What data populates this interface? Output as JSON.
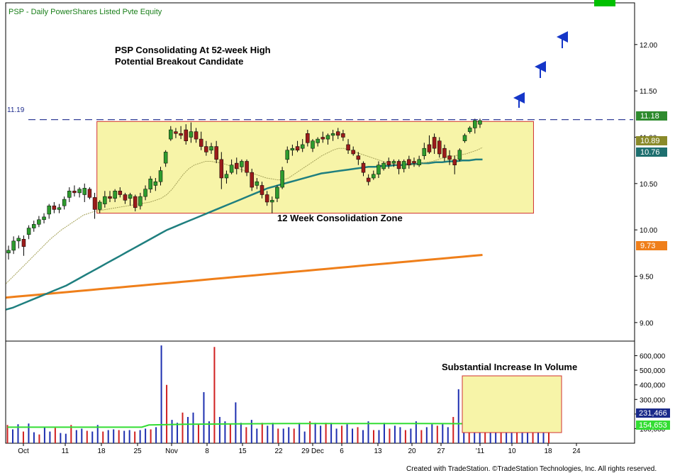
{
  "header": {
    "symbol": "PSP",
    "interval": "Daily",
    "description": "PowerShares Listed Pvte Equity",
    "status_color": "#00c000"
  },
  "annotations": {
    "title_line1": "PSP Consolidating At 52-week High",
    "title_line2": "Potential Breakout Candidate",
    "zone_label": "12 Week Consolidation Zone",
    "volume_note": "Substantial Increase In Volume",
    "resistance_label": "11.19"
  },
  "footer": {
    "credit": "Created with TradeStation. ©TradeStation Technologies, Inc. All rights reserved."
  },
  "colors": {
    "up": "#2e9b2e",
    "down": "#9b1b1b",
    "ma10": "#a5a25a",
    "ma50": "#1f7f7f",
    "ma200": "#ef7f1a",
    "vol_up": "#1e2fb0",
    "vol_down": "#d02020",
    "vol_avg": "#33dd33",
    "zone_fill": "#f7f4a8",
    "zone_border": "#d03030",
    "resistance": "#1c2a8c",
    "arrow": "#1536c8"
  },
  "chart_data": [
    {
      "type": "candlestick",
      "name": "price",
      "x_labels": [
        "Oct",
        "11",
        "18",
        "25",
        "Nov",
        "8",
        "15",
        "22",
        "29 Dec",
        "6",
        "13",
        "20",
        "27",
        "'11",
        "10",
        "18",
        "24"
      ],
      "y_ticks": [
        9.0,
        9.5,
        10.0,
        10.5,
        11.0,
        11.5,
        12.0
      ],
      "ylim": [
        8.8,
        12.45
      ],
      "last_price_labels": [
        {
          "value": "11.18",
          "series": "price"
        },
        {
          "value": "10.89",
          "series": "10-day MA"
        },
        {
          "value": "10.76",
          "series": "50-day MA"
        },
        {
          "value": "9.73",
          "series": "200-day MA"
        }
      ],
      "resistance": 11.19,
      "consolidation_zone": {
        "x_start": 18,
        "x_end": 103,
        "y_low": 10.18,
        "y_high": 11.17
      },
      "candles": [
        {
          "o": 9.75,
          "h": 9.83,
          "l": 9.68,
          "c": 9.78
        },
        {
          "o": 9.78,
          "h": 9.93,
          "l": 9.74,
          "c": 9.88
        },
        {
          "o": 9.88,
          "h": 9.94,
          "l": 9.8,
          "c": 9.91
        },
        {
          "o": 9.9,
          "h": 9.94,
          "l": 9.72,
          "c": 9.82
        },
        {
          "o": 9.95,
          "h": 10.05,
          "l": 9.9,
          "c": 10.02
        },
        {
          "o": 10.02,
          "h": 10.1,
          "l": 9.98,
          "c": 10.06
        },
        {
          "o": 10.06,
          "h": 10.15,
          "l": 10.03,
          "c": 10.11
        },
        {
          "o": 10.11,
          "h": 10.18,
          "l": 10.07,
          "c": 10.14
        },
        {
          "o": 10.17,
          "h": 10.28,
          "l": 10.12,
          "c": 10.26
        },
        {
          "o": 10.26,
          "h": 10.3,
          "l": 10.18,
          "c": 10.22
        },
        {
          "o": 10.22,
          "h": 10.28,
          "l": 10.18,
          "c": 10.24
        },
        {
          "o": 10.26,
          "h": 10.36,
          "l": 10.22,
          "c": 10.33
        },
        {
          "o": 10.35,
          "h": 10.46,
          "l": 10.3,
          "c": 10.42
        },
        {
          "o": 10.42,
          "h": 10.48,
          "l": 10.36,
          "c": 10.4
        },
        {
          "o": 10.4,
          "h": 10.46,
          "l": 10.35,
          "c": 10.44
        },
        {
          "o": 10.38,
          "h": 10.5,
          "l": 10.3,
          "c": 10.45
        },
        {
          "o": 10.44,
          "h": 10.46,
          "l": 10.33,
          "c": 10.35
        },
        {
          "o": 10.35,
          "h": 10.4,
          "l": 10.12,
          "c": 10.22
        },
        {
          "o": 10.22,
          "h": 10.32,
          "l": 10.18,
          "c": 10.3
        },
        {
          "o": 10.28,
          "h": 10.42,
          "l": 10.24,
          "c": 10.36
        },
        {
          "o": 10.36,
          "h": 10.42,
          "l": 10.3,
          "c": 10.34
        },
        {
          "o": 10.34,
          "h": 10.44,
          "l": 10.3,
          "c": 10.42
        },
        {
          "o": 10.42,
          "h": 10.46,
          "l": 10.35,
          "c": 10.38
        },
        {
          "o": 10.38,
          "h": 10.4,
          "l": 10.28,
          "c": 10.32
        },
        {
          "o": 10.34,
          "h": 10.4,
          "l": 10.26,
          "c": 10.38
        },
        {
          "o": 10.36,
          "h": 10.38,
          "l": 10.2,
          "c": 10.24
        },
        {
          "o": 10.26,
          "h": 10.4,
          "l": 10.22,
          "c": 10.36
        },
        {
          "o": 10.36,
          "h": 10.48,
          "l": 10.32,
          "c": 10.44
        },
        {
          "o": 10.44,
          "h": 10.58,
          "l": 10.4,
          "c": 10.55
        },
        {
          "o": 10.48,
          "h": 10.56,
          "l": 10.42,
          "c": 10.52
        },
        {
          "o": 10.52,
          "h": 10.68,
          "l": 10.48,
          "c": 10.64
        },
        {
          "o": 10.72,
          "h": 10.86,
          "l": 10.68,
          "c": 10.84
        },
        {
          "o": 10.98,
          "h": 11.12,
          "l": 10.96,
          "c": 11.08
        },
        {
          "o": 11.06,
          "h": 11.1,
          "l": 10.99,
          "c": 11.04
        },
        {
          "o": 11.04,
          "h": 11.12,
          "l": 10.98,
          "c": 11.02
        },
        {
          "o": 11.08,
          "h": 11.14,
          "l": 10.92,
          "c": 10.96
        },
        {
          "o": 11.0,
          "h": 11.16,
          "l": 10.94,
          "c": 11.06
        },
        {
          "o": 11.06,
          "h": 11.1,
          "l": 10.94,
          "c": 10.98
        },
        {
          "o": 10.98,
          "h": 11.06,
          "l": 10.86,
          "c": 10.9
        },
        {
          "o": 10.9,
          "h": 10.96,
          "l": 10.8,
          "c": 10.84
        },
        {
          "o": 10.86,
          "h": 10.94,
          "l": 10.82,
          "c": 10.9
        },
        {
          "o": 10.9,
          "h": 10.96,
          "l": 10.72,
          "c": 10.76
        },
        {
          "o": 10.76,
          "h": 10.84,
          "l": 10.44,
          "c": 10.56
        },
        {
          "o": 10.56,
          "h": 10.64,
          "l": 10.5,
          "c": 10.6
        },
        {
          "o": 10.62,
          "h": 10.76,
          "l": 10.6,
          "c": 10.7
        },
        {
          "o": 10.72,
          "h": 10.78,
          "l": 10.6,
          "c": 10.66
        },
        {
          "o": 10.68,
          "h": 10.76,
          "l": 10.62,
          "c": 10.74
        },
        {
          "o": 10.74,
          "h": 10.76,
          "l": 10.58,
          "c": 10.62
        },
        {
          "o": 10.62,
          "h": 10.66,
          "l": 10.42,
          "c": 10.46
        },
        {
          "o": 10.48,
          "h": 10.56,
          "l": 10.44,
          "c": 10.52
        },
        {
          "o": 10.48,
          "h": 10.52,
          "l": 10.34,
          "c": 10.38
        },
        {
          "o": 10.38,
          "h": 10.42,
          "l": 10.26,
          "c": 10.3
        },
        {
          "o": 10.3,
          "h": 10.36,
          "l": 10.18,
          "c": 10.32
        },
        {
          "o": 10.34,
          "h": 10.48,
          "l": 10.3,
          "c": 10.46
        },
        {
          "o": 10.46,
          "h": 10.68,
          "l": 10.44,
          "c": 10.64
        },
        {
          "o": 10.76,
          "h": 10.9,
          "l": 10.72,
          "c": 10.86
        },
        {
          "o": 10.86,
          "h": 10.92,
          "l": 10.8,
          "c": 10.88
        },
        {
          "o": 10.9,
          "h": 10.96,
          "l": 10.84,
          "c": 10.86
        },
        {
          "o": 10.88,
          "h": 10.98,
          "l": 10.84,
          "c": 10.92
        },
        {
          "o": 11.04,
          "h": 11.08,
          "l": 10.9,
          "c": 10.94
        },
        {
          "o": 10.88,
          "h": 10.98,
          "l": 10.84,
          "c": 10.96
        },
        {
          "o": 10.94,
          "h": 11.0,
          "l": 10.9,
          "c": 10.98
        },
        {
          "o": 11.0,
          "h": 11.06,
          "l": 10.94,
          "c": 10.98
        },
        {
          "o": 10.98,
          "h": 11.04,
          "l": 10.92,
          "c": 11.02
        },
        {
          "o": 11.02,
          "h": 11.08,
          "l": 10.96,
          "c": 11.04
        },
        {
          "o": 11.06,
          "h": 11.1,
          "l": 10.98,
          "c": 11.02
        },
        {
          "o": 11.04,
          "h": 11.08,
          "l": 10.96,
          "c": 11.0
        },
        {
          "o": 10.92,
          "h": 10.98,
          "l": 10.82,
          "c": 10.86
        },
        {
          "o": 10.86,
          "h": 10.9,
          "l": 10.8,
          "c": 10.82
        },
        {
          "o": 10.8,
          "h": 10.84,
          "l": 10.7,
          "c": 10.76
        },
        {
          "o": 10.72,
          "h": 10.74,
          "l": 10.58,
          "c": 10.62
        },
        {
          "o": 10.56,
          "h": 10.6,
          "l": 10.48,
          "c": 10.52
        },
        {
          "o": 10.56,
          "h": 10.64,
          "l": 10.54,
          "c": 10.6
        },
        {
          "o": 10.6,
          "h": 10.74,
          "l": 10.56,
          "c": 10.7
        },
        {
          "o": 10.66,
          "h": 10.74,
          "l": 10.64,
          "c": 10.72
        },
        {
          "o": 10.74,
          "h": 10.78,
          "l": 10.66,
          "c": 10.7
        },
        {
          "o": 10.72,
          "h": 10.76,
          "l": 10.68,
          "c": 10.74
        },
        {
          "o": 10.74,
          "h": 10.76,
          "l": 10.6,
          "c": 10.66
        },
        {
          "o": 10.66,
          "h": 10.76,
          "l": 10.62,
          "c": 10.74
        },
        {
          "o": 10.76,
          "h": 10.8,
          "l": 10.66,
          "c": 10.7
        },
        {
          "o": 10.74,
          "h": 10.78,
          "l": 10.68,
          "c": 10.72
        },
        {
          "o": 10.7,
          "h": 10.8,
          "l": 10.68,
          "c": 10.76
        },
        {
          "o": 10.8,
          "h": 10.94,
          "l": 10.76,
          "c": 10.88
        },
        {
          "o": 10.92,
          "h": 11.02,
          "l": 10.82,
          "c": 10.84
        },
        {
          "o": 11.0,
          "h": 11.04,
          "l": 10.82,
          "c": 10.88
        },
        {
          "o": 10.96,
          "h": 11.0,
          "l": 10.78,
          "c": 10.82
        },
        {
          "o": 10.88,
          "h": 10.92,
          "l": 10.74,
          "c": 10.78
        },
        {
          "o": 10.8,
          "h": 10.86,
          "l": 10.7,
          "c": 10.76
        },
        {
          "o": 10.76,
          "h": 10.8,
          "l": 10.6,
          "c": 10.7
        },
        {
          "o": 10.76,
          "h": 10.88,
          "l": 10.74,
          "c": 10.86
        },
        {
          "o": 10.96,
          "h": 11.04,
          "l": 10.94,
          "c": 11.02
        },
        {
          "o": 11.06,
          "h": 11.12,
          "l": 11.04,
          "c": 11.1
        },
        {
          "o": 11.1,
          "h": 11.2,
          "l": 11.04,
          "c": 11.18
        },
        {
          "o": 11.14,
          "h": 11.2,
          "l": 11.1,
          "c": 11.18
        }
      ],
      "ma10": [
        9.42,
        9.48,
        9.54,
        9.6,
        9.66,
        9.72,
        9.78,
        9.84,
        9.9,
        9.95,
        10.0,
        10.04,
        10.08,
        10.12,
        10.16,
        10.18,
        10.2,
        10.21,
        10.22,
        10.23,
        10.24,
        10.25,
        10.26,
        10.27,
        10.28,
        10.29,
        10.3,
        10.32,
        10.34,
        10.38,
        10.44,
        10.52,
        10.6,
        10.66,
        10.7,
        10.72,
        10.74,
        10.74,
        10.73,
        10.72,
        10.7,
        10.68,
        10.66,
        10.64,
        10.62,
        10.6,
        10.58,
        10.56,
        10.55,
        10.54,
        10.54,
        10.56,
        10.6,
        10.64,
        10.68,
        10.72,
        10.76,
        10.8,
        10.83,
        10.86,
        10.88,
        10.88,
        10.86,
        10.84,
        10.82,
        10.8,
        10.78,
        10.76,
        10.74,
        10.72,
        10.71,
        10.7,
        10.7,
        10.7,
        10.71,
        10.72,
        10.73,
        10.74,
        10.76,
        10.78,
        10.79,
        10.8,
        10.81,
        10.82,
        10.84,
        10.86,
        10.89
      ],
      "ma50": [
        9.14,
        9.16,
        9.19,
        9.22,
        9.25,
        9.28,
        9.31,
        9.34,
        9.37,
        9.4,
        9.44,
        9.48,
        9.52,
        9.56,
        9.6,
        9.64,
        9.68,
        9.72,
        9.76,
        9.8,
        9.84,
        9.88,
        9.92,
        9.96,
        10.0,
        10.03,
        10.06,
        10.09,
        10.12,
        10.15,
        10.18,
        10.21,
        10.24,
        10.27,
        10.3,
        10.33,
        10.36,
        10.39,
        10.42,
        10.45,
        10.47,
        10.49,
        10.51,
        10.53,
        10.55,
        10.57,
        10.59,
        10.61,
        10.62,
        10.63,
        10.64,
        10.65,
        10.66,
        10.67,
        10.68,
        10.68,
        10.69,
        10.69,
        10.7,
        10.7,
        10.71,
        10.71,
        10.72,
        10.72,
        10.73,
        10.73,
        10.74,
        10.74,
        10.75,
        10.75,
        10.76,
        10.76
      ],
      "ma200": [
        9.27,
        9.28,
        9.29,
        9.3,
        9.31,
        9.32,
        9.33,
        9.34,
        9.35,
        9.36,
        9.37,
        9.38,
        9.39,
        9.4,
        9.41,
        9.42,
        9.43,
        9.44,
        9.45,
        9.46,
        9.47,
        9.48,
        9.49,
        9.5,
        9.51,
        9.52,
        9.53,
        9.54,
        9.55,
        9.56,
        9.57,
        9.58,
        9.59,
        9.6,
        9.61,
        9.62,
        9.63,
        9.64,
        9.65,
        9.66,
        9.67,
        9.68,
        9.69,
        9.7,
        9.71,
        9.72,
        9.73
      ]
    },
    {
      "type": "bar",
      "name": "volume",
      "y_ticks": [
        100000,
        200000,
        300000,
        400000,
        500000,
        600000
      ],
      "y_tick_labels": [
        "100,000",
        "200,000",
        "300,000",
        "400,000",
        "500,000",
        "600,000"
      ],
      "ylim": [
        0,
        700000
      ],
      "last_labels": [
        {
          "value": "231,466",
          "series": "volume"
        },
        {
          "value": "154,653",
          "series": "volume average"
        }
      ],
      "volume": [
        125000,
        95000,
        130000,
        80000,
        135000,
        75000,
        60000,
        110000,
        80000,
        105000,
        70000,
        65000,
        125000,
        90000,
        100000,
        85000,
        80000,
        125000,
        80000,
        90000,
        95000,
        90000,
        85000,
        90000,
        80000,
        90000,
        100000,
        95000,
        110000,
        670000,
        400000,
        160000,
        140000,
        210000,
        180000,
        210000,
        130000,
        350000,
        150000,
        660000,
        180000,
        150000,
        130000,
        280000,
        140000,
        110000,
        160000,
        100000,
        140000,
        120000,
        140000,
        100000,
        100000,
        110000,
        100000,
        140000,
        80000,
        150000,
        140000,
        120000,
        140000,
        140000,
        100000,
        120000,
        130000,
        100000,
        110000,
        90000,
        150000,
        90000,
        90000,
        140000,
        100000,
        120000,
        110000,
        90000,
        100000,
        150000,
        90000,
        110000,
        130000,
        120000,
        130000,
        110000,
        180000,
        370000,
        120000,
        160000,
        130000,
        140000,
        400000,
        160000,
        330000,
        400000,
        160000,
        300000,
        280000,
        240000,
        250000,
        130000,
        220000,
        240000,
        231466
      ],
      "volume_avg": 154653
    }
  ]
}
